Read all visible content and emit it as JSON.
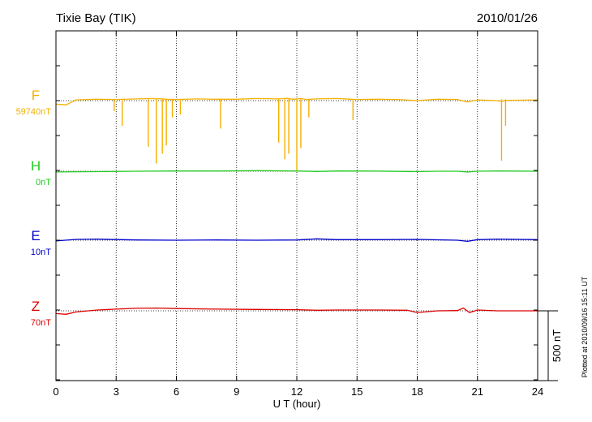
{
  "header": {
    "station": "Tixie Bay (TIK)",
    "date": "2010/01/26"
  },
  "footer": {
    "plotted": "Plotted at 2010/09/16 15:11 UT",
    "scale_bar_label": "500 nT"
  },
  "chart_data": {
    "type": "line",
    "title": "Tixie Bay (TIK)",
    "xlabel": "U T (hour)",
    "xlim": [
      0,
      24
    ],
    "xticks": [
      0,
      3,
      6,
      9,
      12,
      15,
      18,
      21,
      24
    ],
    "x_tick_labels": [
      "0",
      "3",
      "6",
      "9",
      "12",
      "15",
      "18",
      "21",
      "24"
    ],
    "grid": "vertical dotted at every 3 hours",
    "scale_bar_nT": 500,
    "series": [
      {
        "name": "F",
        "baseline_label": "59740nT",
        "color": "#f5b000",
        "x": [
          0,
          0.5,
          1,
          2,
          3,
          4,
          4.8,
          5.0,
          5.2,
          5.5,
          6,
          7,
          8,
          9,
          10,
          11,
          11.3,
          11.5,
          11.8,
          12,
          12.2,
          12.5,
          13,
          14,
          14.7,
          15,
          16,
          17,
          18,
          19,
          20,
          20.5,
          21,
          22,
          22.2,
          22.4,
          23,
          24
        ],
        "values": [
          -25,
          -30,
          5,
          10,
          8,
          12,
          15,
          12,
          14,
          10,
          8,
          12,
          10,
          10,
          15,
          12,
          14,
          16,
          10,
          12,
          15,
          8,
          12,
          15,
          10,
          8,
          10,
          8,
          0,
          10,
          8,
          -10,
          5,
          0,
          -5,
          2,
          3,
          5
        ],
        "spikes": [
          {
            "x": 2.9,
            "depth": -75
          },
          {
            "x": 3.3,
            "depth": -180
          },
          {
            "x": 4.6,
            "depth": -330
          },
          {
            "x": 5.0,
            "depth": -450
          },
          {
            "x": 5.3,
            "depth": -380
          },
          {
            "x": 5.5,
            "depth": -320
          },
          {
            "x": 5.8,
            "depth": -120
          },
          {
            "x": 6.2,
            "depth": -100
          },
          {
            "x": 8.2,
            "depth": -200
          },
          {
            "x": 11.1,
            "depth": -300
          },
          {
            "x": 11.4,
            "depth": -420
          },
          {
            "x": 11.6,
            "depth": -380
          },
          {
            "x": 12.0,
            "depth": -500
          },
          {
            "x": 12.2,
            "depth": -340
          },
          {
            "x": 12.6,
            "depth": -120
          },
          {
            "x": 14.8,
            "depth": -140
          },
          {
            "x": 22.2,
            "depth": -430
          },
          {
            "x": 22.4,
            "depth": -180
          }
        ]
      },
      {
        "name": "H",
        "baseline_label": "0nT",
        "color": "#22cc22",
        "x": [
          0,
          2,
          4,
          6,
          8,
          10,
          12,
          13,
          14,
          16,
          18,
          19,
          20,
          20.5,
          21,
          22,
          24
        ],
        "values": [
          -5,
          -3,
          0,
          2,
          2,
          4,
          2,
          -2,
          2,
          1,
          -3,
          0,
          0,
          -6,
          0,
          2,
          0
        ]
      },
      {
        "name": "E",
        "baseline_label": "10nT",
        "color": "#0000cc",
        "x": [
          0,
          1,
          2,
          4,
          6,
          8,
          10,
          12,
          13,
          14,
          16,
          18,
          20,
          20.5,
          21,
          22,
          24
        ],
        "values": [
          -5,
          6,
          8,
          2,
          0,
          2,
          0,
          2,
          10,
          4,
          4,
          6,
          0,
          -8,
          4,
          8,
          4
        ]
      },
      {
        "name": "Z",
        "baseline_label": "70nT",
        "color": "#dd0000",
        "x": [
          0,
          0.5,
          1,
          2,
          3,
          4,
          5,
          6,
          8,
          10,
          12,
          13,
          14,
          16,
          17.5,
          18,
          19,
          20,
          20.3,
          20.6,
          21,
          22,
          24
        ],
        "values": [
          -20,
          -25,
          -8,
          5,
          12,
          18,
          20,
          16,
          12,
          10,
          8,
          4,
          6,
          6,
          4,
          -12,
          0,
          2,
          20,
          -12,
          6,
          0,
          0
        ]
      }
    ]
  }
}
